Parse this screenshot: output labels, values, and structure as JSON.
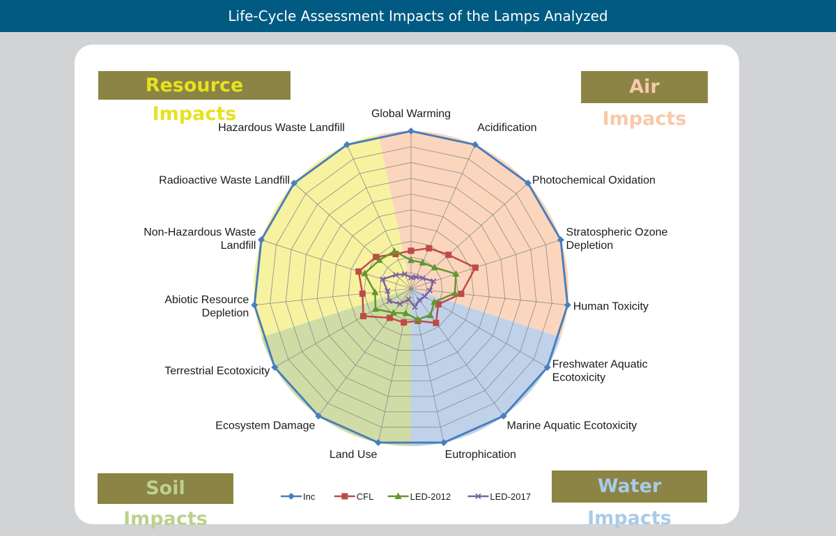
{
  "header": {
    "title": "Life-Cycle Assessment Impacts of the Lamps Analyzed"
  },
  "quadrants": [
    {
      "label": "Resource Impacts",
      "text_color": "#e7e21f",
      "bg_color": "#8b8444"
    },
    {
      "label": "Air Impacts",
      "text_color": "#f8c9a8",
      "bg_color": "#8b8444"
    },
    {
      "label": "Soil Impacts",
      "text_color": "#bcd190",
      "bg_color": "#8b8444"
    },
    {
      "label": "Water Impacts",
      "text_color": "#a9cbe8",
      "bg_color": "#8b8444"
    }
  ],
  "chart_data": {
    "type": "radar",
    "categories": [
      "Global Warming",
      "Acidification",
      "Photochemical Oxidation",
      "Stratospheric Ozone Depletion",
      "Human Toxicity",
      "Freshwater Aquatic Ecotoxicity",
      "Marine Aquatic Ecotoxicity",
      "Eutrophication",
      "Land Use",
      "Ecosystem Damage",
      "Terrestrial Ecotoxicity",
      "Abiotic Resource Depletion",
      "Non-Hazardous Waste Landfill",
      "Radioactive Waste Landfill",
      "Hazardous Waste Landfill"
    ],
    "rmax": 100,
    "rings": 10,
    "grid": true,
    "legend_position": "bottom",
    "series": [
      {
        "name": "Inc",
        "color": "#4a7ebb",
        "marker": "diamond",
        "values": [
          100,
          100,
          100,
          100,
          100,
          100,
          100,
          100,
          100,
          100,
          100,
          100,
          100,
          100,
          100
        ]
      },
      {
        "name": "CFL",
        "color": "#be4b48",
        "marker": "square",
        "values": [
          24,
          28,
          32,
          43,
          32,
          20,
          27,
          21,
          22,
          23,
          35,
          31,
          35,
          30,
          24
        ]
      },
      {
        "name": "LED-2012",
        "color": "#63962e",
        "marker": "triangle",
        "values": [
          18,
          18,
          20,
          30,
          28,
          17,
          21,
          20,
          16,
          19,
          26,
          23,
          31,
          27,
          26
        ]
      },
      {
        "name": "LED-2017",
        "color": "#7d60a0",
        "marker": "x",
        "values": [
          7,
          8,
          10,
          15,
          12,
          10,
          9,
          12,
          7,
          12,
          16,
          15,
          19,
          13,
          10
        ]
      }
    ],
    "sectors": [
      {
        "name": "Air Impacts",
        "color": "#fbd6bd",
        "start": -0.5,
        "end": 4.5
      },
      {
        "name": "Water Impacts",
        "color": "#bfd2ea",
        "start": 4.5,
        "end": 7.5
      },
      {
        "name": "Soil Impacts",
        "color": "#cfdca6",
        "start": 7.5,
        "end": 10.5
      },
      {
        "name": "Resource Impacts",
        "color": "#f6f29f",
        "start": 10.5,
        "end": 14.5
      }
    ]
  }
}
